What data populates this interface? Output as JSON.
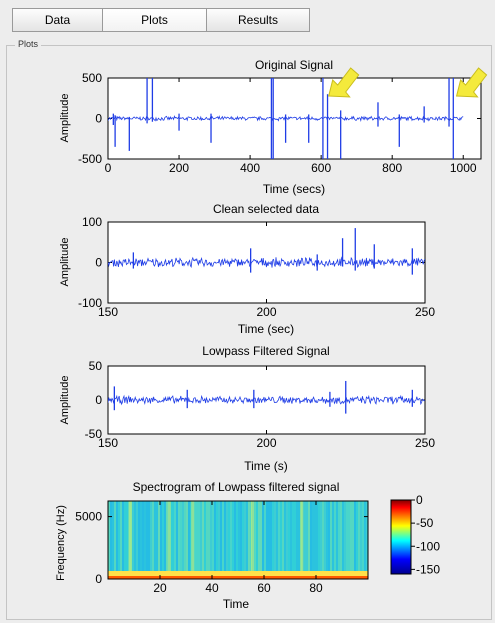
{
  "tabs": [
    {
      "label": "Data"
    },
    {
      "label": "Plots"
    },
    {
      "label": "Results"
    }
  ],
  "active_tab": "Plots",
  "panel": {
    "title": "Plots"
  },
  "signal_color": "#1f3de6",
  "arrow_color": "#f4ea3c",
  "chart_data": [
    {
      "type": "line",
      "title": "Original Signal",
      "xlabel": "Time (secs)",
      "ylabel": "Amplitude",
      "xlim": [
        0,
        1050
      ],
      "ylim": [
        -500,
        500
      ],
      "xticks": [
        "0",
        "200",
        "400",
        "600",
        "800",
        "1000"
      ],
      "yticks": [
        "500",
        "0",
        "-500"
      ],
      "series": [
        {
          "values": []
        }
      ],
      "spikes": [
        {
          "x": 15,
          "y0": -80,
          "y1": 60
        },
        {
          "x": 20,
          "y0": -350,
          "y1": 40
        },
        {
          "x": 60,
          "y0": -400,
          "y1": 20
        },
        {
          "x": 110,
          "y0": -60,
          "y1": 500
        },
        {
          "x": 125,
          "y0": -40,
          "y1": 500
        },
        {
          "x": 200,
          "y0": -150,
          "y1": 60
        },
        {
          "x": 290,
          "y0": -300,
          "y1": 60
        },
        {
          "x": 460,
          "y0": -500,
          "y1": 500
        },
        {
          "x": 465,
          "y0": -500,
          "y1": 500
        },
        {
          "x": 500,
          "y0": -300,
          "y1": 50
        },
        {
          "x": 565,
          "y0": -300,
          "y1": 50
        },
        {
          "x": 605,
          "y0": -500,
          "y1": 500
        },
        {
          "x": 618,
          "y0": -500,
          "y1": 300
        },
        {
          "x": 655,
          "y0": -500,
          "y1": 100
        },
        {
          "x": 760,
          "y0": -100,
          "y1": 200
        },
        {
          "x": 820,
          "y0": -350,
          "y1": 50
        },
        {
          "x": 890,
          "y0": -50,
          "y1": 150
        },
        {
          "x": 960,
          "y0": -100,
          "y1": 500
        },
        {
          "x": 972,
          "y0": -500,
          "y1": 500
        }
      ],
      "annotations": [
        {
          "type": "arrow",
          "x": 610
        },
        {
          "type": "arrow",
          "x": 970
        }
      ]
    },
    {
      "type": "line",
      "title": "Clean selected data",
      "xlabel": "Time (sec)",
      "ylabel": "Amplitude",
      "xlim": [
        150,
        250
      ],
      "ylim": [
        -100,
        100
      ],
      "xticks": [
        "150",
        "200",
        "250"
      ],
      "yticks": [
        "100",
        "0",
        "-100"
      ],
      "series": [
        {
          "values": []
        }
      ],
      "spikes": [
        {
          "x": 158,
          "y0": -15,
          "y1": 25
        },
        {
          "x": 195,
          "y0": -25,
          "y1": 35
        },
        {
          "x": 216,
          "y0": -20,
          "y1": 20
        },
        {
          "x": 224,
          "y0": -10,
          "y1": 60
        },
        {
          "x": 228,
          "y0": -20,
          "y1": 85
        },
        {
          "x": 234,
          "y0": -15,
          "y1": 45
        },
        {
          "x": 246,
          "y0": -30,
          "y1": 35
        }
      ]
    },
    {
      "type": "line",
      "title": "Lowpass Filtered Signal",
      "xlabel": "Time (s)",
      "ylabel": "Amplitude",
      "xlim": [
        150,
        250
      ],
      "ylim": [
        -50,
        50
      ],
      "xticks": [
        "150",
        "200",
        "250"
      ],
      "yticks": [
        "50",
        "0",
        "-50"
      ],
      "series": [
        {
          "values": []
        }
      ],
      "spikes": [
        {
          "x": 152,
          "y0": -15,
          "y1": 20
        },
        {
          "x": 175,
          "y0": -12,
          "y1": 15
        },
        {
          "x": 196,
          "y0": -12,
          "y1": 15
        },
        {
          "x": 220,
          "y0": -10,
          "y1": 12
        },
        {
          "x": 225,
          "y0": -20,
          "y1": 28
        },
        {
          "x": 246,
          "y0": -10,
          "y1": 15
        }
      ]
    },
    {
      "type": "heatmap",
      "title": "Spectrogram of Lowpass filtered signal",
      "xlabel": "Time",
      "ylabel": "Frequency (Hz)",
      "xlim": [
        0,
        100
      ],
      "ylim": [
        0,
        6250
      ],
      "xticks": [
        "20",
        "40",
        "60",
        "80"
      ],
      "yticks": [
        "5000",
        "0"
      ],
      "colorbar": {
        "ticks": [
          "0",
          "-50",
          "-100",
          "-150"
        ],
        "range": [
          -160,
          0
        ]
      }
    }
  ]
}
